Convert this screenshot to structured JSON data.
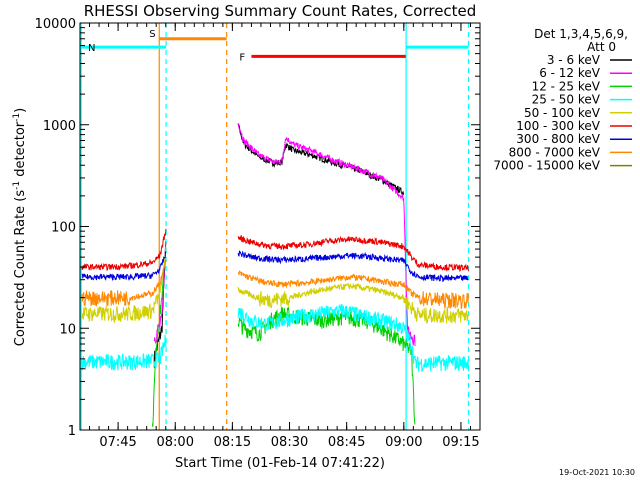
{
  "chart_data": {
    "type": "line",
    "title": "RHESSI Observing Summary Count Rates, Corrected",
    "xlabel": "Start Time (01-Feb-14 07:41:22)",
    "ylabel_main": "Corrected Count Rate (s",
    "ylabel_sup1": "-1",
    "ylabel_mid": " detector",
    "ylabel_sup2": "-1",
    "ylabel_end": ")",
    "yscale": "log",
    "ylim": [
      1,
      10000
    ],
    "xlim_min": [
      455,
      560
    ],
    "y_ticks": [
      "1",
      "10",
      "100",
      "1000",
      "10000"
    ],
    "x_ticks": [
      {
        "min": 465,
        "label": "07:45"
      },
      {
        "min": 480,
        "label": "08:00"
      },
      {
        "min": 495,
        "label": "08:15"
      },
      {
        "min": 510,
        "label": "08:30"
      },
      {
        "min": 525,
        "label": "08:45"
      },
      {
        "min": 540,
        "label": "09:00"
      },
      {
        "min": 555,
        "label": "09:15"
      }
    ],
    "legend": {
      "header1": "Det 1,3,4,5,6,9,",
      "header2": "Att 0",
      "entries": [
        {
          "label": "3 - 6 keV",
          "color": "#000000"
        },
        {
          "label": "6 - 12 keV",
          "color": "#ff00ff"
        },
        {
          "label": "12 - 25 keV",
          "color": "#00d000"
        },
        {
          "label": "25 - 50 keV",
          "color": "#00ffff"
        },
        {
          "label": "50 - 100 keV",
          "color": "#d0d000"
        },
        {
          "label": "100 - 300 keV",
          "color": "#ee0000"
        },
        {
          "label": "300 - 800 keV",
          "color": "#0000dd"
        },
        {
          "label": "800 - 7000 keV",
          "color": "#ff8800"
        },
        {
          "label": "7000 - 15000 keV",
          "color": "#808000"
        }
      ]
    },
    "flags": [
      {
        "label": "S",
        "color": "#ff8800",
        "start_min": 475.8,
        "end_min": 493.5,
        "level": 7000
      },
      {
        "label": "N",
        "color": "#00ffff",
        "start_min": 455.0,
        "end_min": 477.6,
        "level": 5800
      },
      {
        "label": "F",
        "color": "#ff0000",
        "start_min": 500.0,
        "end_min": 540.5,
        "level": 4700
      },
      {
        "label": "",
        "color": "#00ffff",
        "start_min": 540.6,
        "end_min": 557.0,
        "level": 5800
      }
    ],
    "vlines": [
      {
        "min": 455.3,
        "color": "#00ffff",
        "dashed": false
      },
      {
        "min": 475.8,
        "color": "#ff8800",
        "dashed": false
      },
      {
        "min": 477.6,
        "color": "#00ffff",
        "dashed": true
      },
      {
        "min": 493.5,
        "color": "#ff8800",
        "dashed": true
      },
      {
        "min": 540.6,
        "color": "#00ffff",
        "dashed": false
      },
      {
        "min": 557.0,
        "color": "#00ffff",
        "dashed": true
      }
    ],
    "segments": [
      {
        "t0": 455.5,
        "t1": 478.0
      },
      {
        "t0": 496.5,
        "t1": 557.0
      }
    ],
    "series": [
      {
        "name": "3 - 6 keV",
        "color": "#000000",
        "pre": [
          [
            474.5,
            5
          ],
          [
            476.5,
            10
          ],
          [
            477.6,
            80
          ]
        ],
        "post": [
          [
            496.5,
            1000
          ],
          [
            498,
            650
          ],
          [
            502,
            480
          ],
          [
            506,
            420
          ],
          [
            508,
            430
          ],
          [
            509,
            640
          ],
          [
            511,
            560
          ],
          [
            516,
            500
          ],
          [
            522,
            420
          ],
          [
            528,
            360
          ],
          [
            534,
            290
          ],
          [
            540,
            215
          ]
        ]
      },
      {
        "name": "6 - 12 keV",
        "color": "#ff00ff",
        "pre": [
          [
            474.5,
            8
          ],
          [
            476.5,
            12
          ],
          [
            477.6,
            85
          ]
        ],
        "post": [
          [
            496.5,
            1050
          ],
          [
            498,
            700
          ],
          [
            502,
            500
          ],
          [
            506,
            430
          ],
          [
            508,
            440
          ],
          [
            509,
            750
          ],
          [
            511,
            640
          ],
          [
            516,
            550
          ],
          [
            522,
            440
          ],
          [
            528,
            370
          ],
          [
            534,
            300
          ],
          [
            540,
            190
          ],
          [
            541,
            9
          ],
          [
            543,
            8
          ]
        ]
      },
      {
        "name": "12 - 25 keV",
        "color": "#00d000",
        "pre": [
          [
            474.0,
            1
          ],
          [
            475,
            7
          ],
          [
            476.5,
            20
          ],
          [
            477.6,
            70
          ]
        ],
        "post": [
          [
            496.5,
            12
          ],
          [
            498,
            10
          ],
          [
            502,
            9
          ],
          [
            505,
            12
          ],
          [
            508,
            14
          ],
          [
            512,
            13
          ],
          [
            518,
            12
          ],
          [
            524,
            13
          ],
          [
            530,
            12
          ],
          [
            534,
            10
          ],
          [
            538,
            8
          ],
          [
            540,
            7
          ],
          [
            542,
            6
          ],
          [
            543,
            1
          ]
        ]
      },
      {
        "name": "25 - 50 keV",
        "color": "#00ffff",
        "pre": [
          [
            455.5,
            4.7
          ],
          [
            462,
            4.7
          ],
          [
            468,
            4.7
          ],
          [
            474,
            4.8
          ],
          [
            476,
            5
          ],
          [
            477.6,
            8
          ]
        ],
        "post": [
          [
            496.5,
            15
          ],
          [
            500,
            12
          ],
          [
            504,
            11
          ],
          [
            508,
            12
          ],
          [
            512,
            13
          ],
          [
            518,
            14
          ],
          [
            524,
            15
          ],
          [
            530,
            13
          ],
          [
            534,
            12
          ],
          [
            538,
            11
          ],
          [
            540,
            10
          ],
          [
            542,
            7
          ],
          [
            543,
            4.5
          ],
          [
            550,
            4.6
          ],
          [
            557,
            4.6
          ]
        ]
      },
      {
        "name": "50 - 100 keV",
        "color": "#d0d000",
        "pre": [
          [
            455.5,
            14
          ],
          [
            462,
            14
          ],
          [
            468,
            14
          ],
          [
            474,
            15
          ],
          [
            476,
            22
          ],
          [
            477.6,
            60
          ]
        ],
        "post": [
          [
            496.5,
            24
          ],
          [
            500,
            21
          ],
          [
            504,
            19
          ],
          [
            510,
            20
          ],
          [
            516,
            23
          ],
          [
            522,
            25
          ],
          [
            526,
            26
          ],
          [
            532,
            24
          ],
          [
            536,
            22
          ],
          [
            540,
            20
          ],
          [
            542,
            16
          ],
          [
            544,
            13.5
          ],
          [
            550,
            13.5
          ],
          [
            557,
            13.5
          ]
        ]
      },
      {
        "name": "100 - 300 keV",
        "color": "#ee0000",
        "pre": [
          [
            455.5,
            40
          ],
          [
            462,
            40
          ],
          [
            468,
            41
          ],
          [
            474,
            44
          ],
          [
            476,
            52
          ],
          [
            477.6,
            95
          ]
        ],
        "post": [
          [
            496.5,
            78
          ],
          [
            500,
            70
          ],
          [
            504,
            65
          ],
          [
            508,
            64
          ],
          [
            514,
            66
          ],
          [
            520,
            72
          ],
          [
            526,
            75
          ],
          [
            532,
            72
          ],
          [
            536,
            68
          ],
          [
            540,
            64
          ],
          [
            542,
            50
          ],
          [
            544,
            42
          ],
          [
            550,
            40
          ],
          [
            557,
            39
          ]
        ]
      },
      {
        "name": "300 - 800 keV",
        "color": "#0000dd",
        "pre": [
          [
            455.5,
            32
          ],
          [
            462,
            32
          ],
          [
            468,
            32
          ],
          [
            474,
            33
          ],
          [
            476,
            38
          ],
          [
            477.6,
            55
          ]
        ],
        "post": [
          [
            496.5,
            55
          ],
          [
            500,
            50
          ],
          [
            504,
            48
          ],
          [
            508,
            47
          ],
          [
            514,
            48
          ],
          [
            520,
            50
          ],
          [
            526,
            52
          ],
          [
            532,
            50
          ],
          [
            536,
            48
          ],
          [
            540,
            46
          ],
          [
            542,
            36
          ],
          [
            544,
            32
          ],
          [
            550,
            31
          ],
          [
            557,
            31
          ]
        ]
      },
      {
        "name": "800 - 7000 keV",
        "color": "#ff8800",
        "pre": [
          [
            455.5,
            20
          ],
          [
            462,
            20
          ],
          [
            468,
            20
          ],
          [
            474,
            22
          ],
          [
            476,
            28
          ],
          [
            477.6,
            45
          ]
        ],
        "post": [
          [
            496.5,
            35
          ],
          [
            500,
            31
          ],
          [
            504,
            28
          ],
          [
            508,
            27
          ],
          [
            514,
            28
          ],
          [
            520,
            30
          ],
          [
            526,
            32
          ],
          [
            532,
            30
          ],
          [
            536,
            28
          ],
          [
            540,
            27
          ],
          [
            542,
            22
          ],
          [
            544,
            20
          ],
          [
            550,
            19
          ],
          [
            557,
            19
          ]
        ]
      },
      {
        "name": "7000 - 15000 keV",
        "color": "#808000",
        "pre": [],
        "post": []
      }
    ]
  },
  "footer_date": "19-Oct-2021 10:30"
}
